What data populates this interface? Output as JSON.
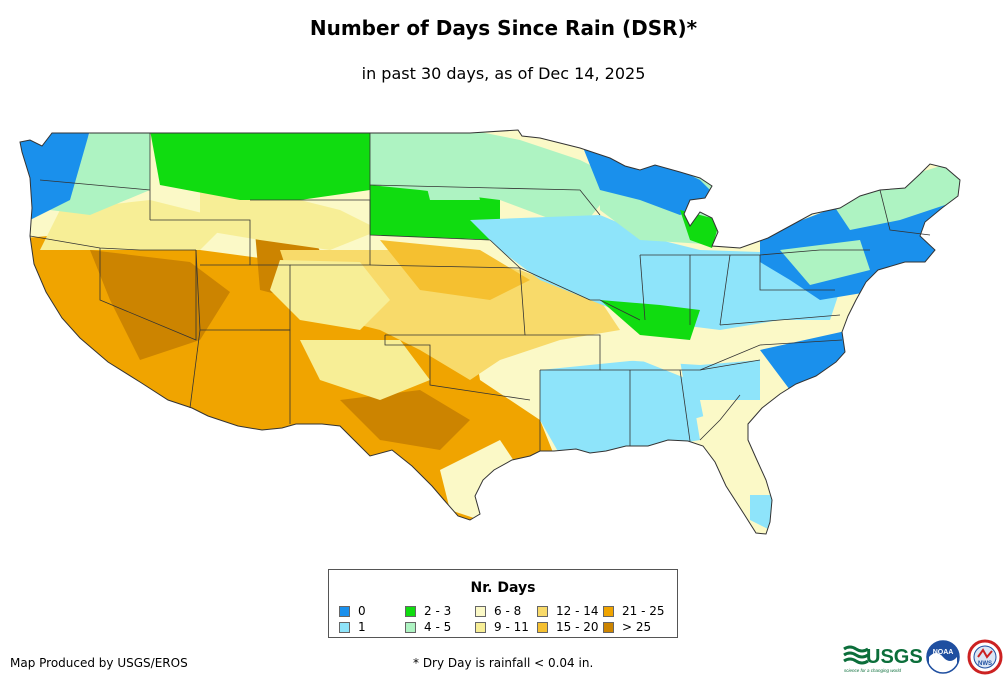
{
  "title": "Number of Days Since Rain (DSR)*",
  "subtitle": "in past 30 days, as of Dec 14, 2025",
  "legend": {
    "title": "Nr. Days",
    "items": [
      {
        "label": "0",
        "color": "#1a90ec"
      },
      {
        "label": "1",
        "color": "#8ee4fa"
      },
      {
        "label": "2 - 3",
        "color": "#10dc10"
      },
      {
        "label": "4 - 5",
        "color": "#aef3c2"
      },
      {
        "label": "6 - 8",
        "color": "#fbf9c7"
      },
      {
        "label": "9 - 11",
        "color": "#f7ee96"
      },
      {
        "label": "12 - 14",
        "color": "#f8da6a"
      },
      {
        "label": "15 - 20",
        "color": "#f5c030"
      },
      {
        "label": "21 - 25",
        "color": "#f0a400"
      },
      {
        "label": "> 25",
        "color": "#cc8400"
      }
    ]
  },
  "credit": "Map Produced by USGS/EROS",
  "footnote": "* Dry Day is rainfall < 0.04 in.",
  "logos": {
    "usgs": "USGS",
    "usgs_tagline": "science for a changing world",
    "noaa": "NOAA",
    "nws": "NWS"
  }
}
